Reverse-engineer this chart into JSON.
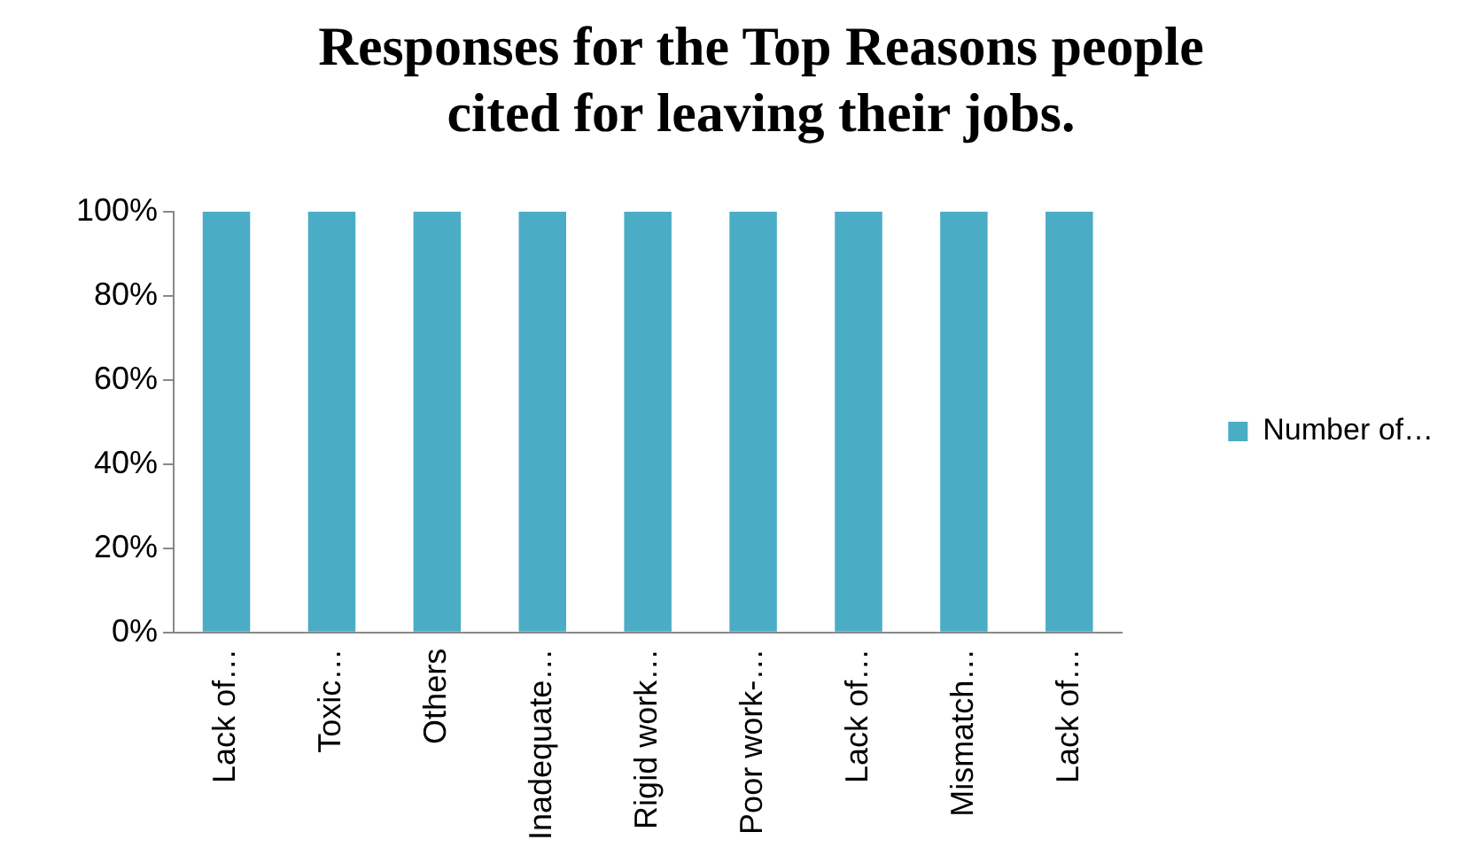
{
  "chart_data": {
    "type": "bar",
    "title": "Responses for the Top Reasons people cited for leaving their jobs.",
    "categories": [
      "Lack of…",
      "Toxic…",
      "Others",
      "Inadequate…",
      "Rigid work…",
      "Poor work-…",
      "Lack of…",
      "Mismatch…",
      "Lack of…"
    ],
    "series": [
      {
        "name": "Number of…",
        "color": "#4bacc6",
        "values": [
          100,
          100,
          100,
          100,
          100,
          100,
          100,
          100,
          100
        ]
      }
    ],
    "ylim": [
      0,
      100
    ],
    "yticks": [
      {
        "value": 0,
        "label": "0%"
      },
      {
        "value": 20,
        "label": "20%"
      },
      {
        "value": 40,
        "label": "40%"
      },
      {
        "value": 60,
        "label": "60%"
      },
      {
        "value": 80,
        "label": "80%"
      },
      {
        "value": 100,
        "label": "100%"
      }
    ],
    "grid": false,
    "legend": "right"
  }
}
